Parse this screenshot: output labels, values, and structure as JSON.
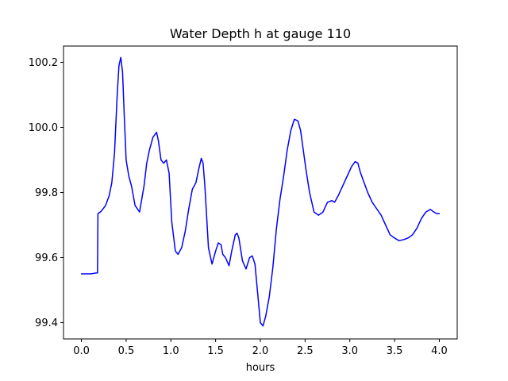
{
  "chart_data": {
    "type": "line",
    "title": "Water Depth h at gauge 110",
    "xlabel": "hours",
    "ylabel": "",
    "xlim": [
      -0.2,
      4.2
    ],
    "ylim": [
      99.35,
      100.25
    ],
    "xticks": [
      0.0,
      0.5,
      1.0,
      1.5,
      2.0,
      2.5,
      3.0,
      3.5,
      4.0
    ],
    "xtick_labels": [
      "0.0",
      "0.5",
      "1.0",
      "1.5",
      "2.0",
      "2.5",
      "3.0",
      "3.5",
      "4.0"
    ],
    "yticks": [
      99.4,
      99.6,
      99.8,
      100.0,
      100.2
    ],
    "ytick_labels": [
      "99.4",
      "99.6",
      "99.8",
      "100.0",
      "100.2"
    ],
    "grid": false,
    "legend": "none",
    "series": [
      {
        "color": "#0000ff",
        "x": [
          0.0,
          0.05,
          0.1,
          0.15,
          0.18,
          0.185,
          0.22,
          0.27,
          0.31,
          0.34,
          0.37,
          0.4,
          0.42,
          0.44,
          0.46,
          0.48,
          0.5,
          0.53,
          0.56,
          0.6,
          0.65,
          0.7,
          0.73,
          0.76,
          0.8,
          0.84,
          0.86,
          0.89,
          0.92,
          0.95,
          0.98,
          1.01,
          1.05,
          1.08,
          1.12,
          1.16,
          1.2,
          1.24,
          1.28,
          1.31,
          1.34,
          1.36,
          1.38,
          1.42,
          1.46,
          1.5,
          1.53,
          1.56,
          1.58,
          1.61,
          1.65,
          1.68,
          1.72,
          1.74,
          1.76,
          1.8,
          1.84,
          1.88,
          1.91,
          1.94,
          1.97,
          2.0,
          2.03,
          2.06,
          2.1,
          2.14,
          2.18,
          2.22,
          2.26,
          2.3,
          2.34,
          2.38,
          2.42,
          2.45,
          2.48,
          2.51,
          2.55,
          2.6,
          2.65,
          2.7,
          2.75,
          2.8,
          2.83,
          2.87,
          2.92,
          2.97,
          3.02,
          3.06,
          3.09,
          3.12,
          3.16,
          3.2,
          3.25,
          3.3,
          3.35,
          3.4,
          3.45,
          3.5,
          3.55,
          3.6,
          3.65,
          3.7,
          3.75,
          3.8,
          3.85,
          3.9,
          3.94,
          3.97,
          4.0
        ],
        "y": [
          99.55,
          99.55,
          99.55,
          99.552,
          99.553,
          99.735,
          99.742,
          99.76,
          99.79,
          99.83,
          99.92,
          100.1,
          100.19,
          100.215,
          100.17,
          100.03,
          99.9,
          99.85,
          99.82,
          99.76,
          99.74,
          99.82,
          99.89,
          99.93,
          99.97,
          99.985,
          99.96,
          99.9,
          99.89,
          99.9,
          99.86,
          99.71,
          99.62,
          99.61,
          99.63,
          99.68,
          99.75,
          99.81,
          99.83,
          99.87,
          99.905,
          99.89,
          99.82,
          99.63,
          99.58,
          99.62,
          99.645,
          99.64,
          99.61,
          99.6,
          99.575,
          99.62,
          99.67,
          99.675,
          99.66,
          99.59,
          99.565,
          99.6,
          99.605,
          99.58,
          99.49,
          99.4,
          99.39,
          99.42,
          99.48,
          99.57,
          99.69,
          99.78,
          99.85,
          99.93,
          99.99,
          100.025,
          100.02,
          99.99,
          99.93,
          99.87,
          99.8,
          99.74,
          99.73,
          99.74,
          99.77,
          99.775,
          99.77,
          99.79,
          99.82,
          99.85,
          99.88,
          99.895,
          99.89,
          99.86,
          99.83,
          99.8,
          99.77,
          99.75,
          99.73,
          99.7,
          99.67,
          99.66,
          99.652,
          99.655,
          99.66,
          99.67,
          99.69,
          99.72,
          99.74,
          99.748,
          99.74,
          99.735,
          99.735
        ]
      }
    ]
  }
}
